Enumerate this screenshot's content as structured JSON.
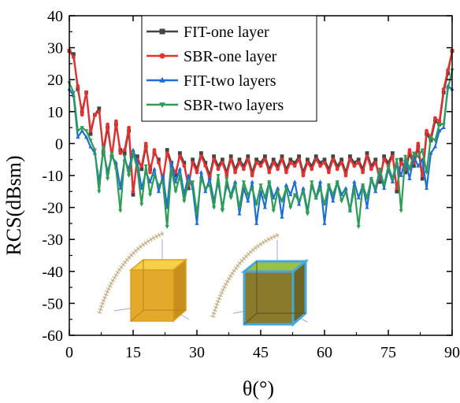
{
  "chart_data": {
    "type": "line",
    "xlabel": "θ(°)",
    "ylabel": "RCS(dBsm)",
    "xlim": [
      0,
      90
    ],
    "ylim": [
      -60,
      40
    ],
    "xticks": [
      "0",
      "15",
      "30",
      "45",
      "60",
      "75",
      "90"
    ],
    "xtick_values": [
      0,
      15,
      30,
      45,
      60,
      75,
      90
    ],
    "yticks": [
      "40",
      "30",
      "20",
      "10",
      "0",
      "-10",
      "-20",
      "-30",
      "-40",
      "-50",
      "-60"
    ],
    "ytick_values": [
      40,
      30,
      20,
      10,
      0,
      -10,
      -20,
      -30,
      -40,
      -50,
      -60
    ],
    "grid": false,
    "legend_position": "top-center",
    "x": [
      0,
      1,
      2,
      3,
      4,
      5,
      6,
      7,
      8,
      9,
      10,
      11,
      12,
      13,
      14,
      15,
      16,
      17,
      18,
      19,
      20,
      21,
      22,
      23,
      24,
      25,
      26,
      27,
      28,
      29,
      30,
      31,
      32,
      33,
      34,
      35,
      36,
      37,
      38,
      39,
      40,
      41,
      42,
      43,
      44,
      45,
      46,
      47,
      48,
      49,
      50,
      51,
      52,
      53,
      54,
      55,
      56,
      57,
      58,
      59,
      60,
      61,
      62,
      63,
      64,
      65,
      66,
      67,
      68,
      69,
      70,
      71,
      72,
      73,
      74,
      75,
      76,
      77,
      78,
      79,
      80,
      81,
      82,
      83,
      84,
      85,
      86,
      87,
      88,
      89,
      90
    ],
    "series": [
      {
        "name": "FIT-one layer",
        "color": "#444444",
        "marker": "square",
        "values": [
          29,
          28,
          17,
          10,
          16,
          3,
          9,
          11,
          -3,
          5,
          -4,
          6,
          -2,
          -3,
          4,
          -16,
          -4,
          -8,
          -1,
          -8,
          -3,
          -5,
          -12,
          -2,
          -6,
          -10,
          -3,
          -6,
          -14,
          -5,
          -8,
          -3,
          -6,
          -10,
          -4,
          -7,
          -5,
          -9,
          -4,
          -8,
          -5,
          -7,
          -4,
          -9,
          -5,
          -6,
          -4,
          -8,
          -5,
          -7,
          -4,
          -8,
          -5,
          -6,
          -4,
          -9,
          -5,
          -7,
          -4,
          -6,
          -5,
          -8,
          -4,
          -7,
          -5,
          -9,
          -4,
          -6,
          -5,
          -8,
          -3,
          -7,
          -5,
          -12,
          -4,
          -6,
          -3,
          -15,
          -5,
          -9,
          -3,
          -7,
          -1,
          -11,
          3,
          1,
          7,
          6,
          16,
          22,
          29
        ]
      },
      {
        "name": "SBR-one layer",
        "color": "#e8302f",
        "marker": "circle",
        "values": [
          29,
          27,
          18,
          9,
          16,
          4,
          9,
          10,
          -2,
          6,
          -4,
          7,
          -3,
          -2,
          5,
          -15,
          -5,
          -7,
          0,
          -9,
          -2,
          -6,
          -11,
          -3,
          -7,
          -9,
          -4,
          -7,
          -13,
          -6,
          -9,
          -4,
          -7,
          -11,
          -5,
          -8,
          -6,
          -10,
          -5,
          -9,
          -6,
          -8,
          -5,
          -10,
          -6,
          -7,
          -5,
          -9,
          -6,
          -8,
          -5,
          -9,
          -6,
          -7,
          -5,
          -10,
          -6,
          -8,
          -5,
          -7,
          -6,
          -9,
          -5,
          -8,
          -6,
          -10,
          -5,
          -7,
          -6,
          -9,
          -4,
          -8,
          -6,
          -11,
          -5,
          -7,
          -4,
          -14,
          -6,
          -8,
          -2,
          -6,
          0,
          -10,
          4,
          2,
          8,
          7,
          17,
          23,
          29
        ]
      },
      {
        "name": "FIT-two layers",
        "color": "#1f6fd0",
        "marker": "triangle-up",
        "values": [
          17,
          15,
          2,
          4,
          2,
          -1,
          -3,
          -12,
          -2,
          -9,
          -4,
          -6,
          -14,
          -5,
          -8,
          -2,
          -6,
          -14,
          -9,
          -12,
          -8,
          -15,
          -10,
          -20,
          -6,
          -12,
          -8,
          -16,
          -10,
          -14,
          -25,
          -9,
          -15,
          -11,
          -18,
          -12,
          -20,
          -13,
          -16,
          -12,
          -22,
          -14,
          -18,
          -12,
          -25,
          -15,
          -20,
          -12,
          -17,
          -14,
          -23,
          -13,
          -16,
          -12,
          -19,
          -14,
          -21,
          -13,
          -17,
          -12,
          -25,
          -13,
          -18,
          -12,
          -16,
          -14,
          -21,
          -12,
          -17,
          -13,
          -20,
          -11,
          -15,
          -9,
          -14,
          -8,
          -12,
          -6,
          -10,
          -5,
          -11,
          -4,
          -7,
          -5,
          -14,
          -3,
          -1,
          4,
          5,
          18,
          17
        ]
      },
      {
        "name": "SBR-two layers",
        "color": "#2e9c55",
        "marker": "triangle-down",
        "values": [
          19,
          16,
          4,
          5,
          4,
          1,
          -2,
          -15,
          -1,
          -11,
          -3,
          -8,
          -21,
          -4,
          -10,
          -3,
          -8,
          -19,
          -7,
          -16,
          -10,
          -13,
          -12,
          -26,
          -8,
          -15,
          -10,
          -18,
          -12,
          -12,
          -22,
          -11,
          -14,
          -13,
          -20,
          -10,
          -21,
          -11,
          -17,
          -13,
          -20,
          -12,
          -16,
          -14,
          -19,
          -13,
          -17,
          -12,
          -21,
          -15,
          -18,
          -14,
          -20,
          -16,
          -18,
          -15,
          -22,
          -12,
          -17,
          -14,
          -19,
          -13,
          -16,
          -12,
          -18,
          -15,
          -21,
          -14,
          -26,
          -13,
          -17,
          -11,
          -14,
          -8,
          -13,
          -7,
          -11,
          -5,
          -21,
          -4,
          -8,
          -3,
          -4,
          -2,
          -9,
          2,
          1,
          6,
          6,
          17,
          23
        ]
      }
    ]
  }
}
